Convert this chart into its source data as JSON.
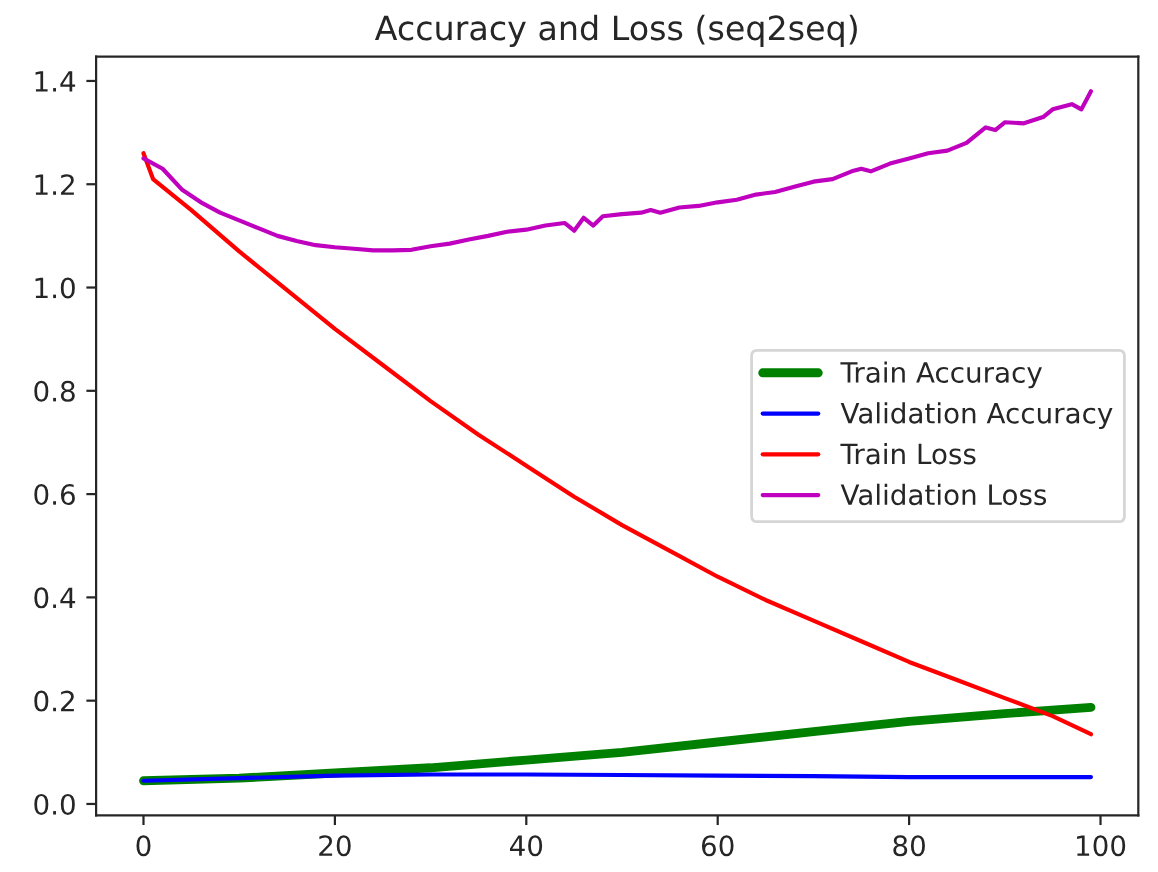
{
  "chart_data": {
    "type": "line",
    "title": "Accuracy and Loss (seq2seq)",
    "xlim": [
      -4.95,
      103.95
    ],
    "xticks": [
      0,
      20,
      40,
      60,
      80,
      100
    ],
    "ylim": [
      -0.022,
      1.447
    ],
    "yticks": [
      {
        "value": 0,
        "label": "0.0"
      },
      {
        "value": 0.2,
        "label": "0.2"
      },
      {
        "value": 0.4,
        "label": "0.4"
      },
      {
        "value": 0.6,
        "label": "0.6"
      },
      {
        "value": 0.8,
        "label": "0.8"
      },
      {
        "value": 1.0,
        "label": "1.0"
      },
      {
        "value": 1.2,
        "label": "1.2"
      },
      {
        "value": 1.4,
        "label": "1.4"
      }
    ],
    "grid": false,
    "legend": "right",
    "marker": "none",
    "line_style": "solid",
    "series": [
      {
        "name": "Train Accuracy",
        "color": "#008000",
        "x": [
          0,
          10,
          20,
          30,
          40,
          50,
          60,
          70,
          80,
          90,
          99
        ],
        "values": [
          0.045,
          0.05,
          0.06,
          0.07,
          0.085,
          0.1,
          0.12,
          0.14,
          0.16,
          0.175,
          0.187
        ]
      },
      {
        "name": "Validation Accuracy",
        "color": "#0000ff",
        "x": [
          0,
          10,
          20,
          30,
          40,
          50,
          60,
          70,
          80,
          90,
          99
        ],
        "values": [
          0.045,
          0.05,
          0.055,
          0.057,
          0.057,
          0.056,
          0.055,
          0.054,
          0.052,
          0.052,
          0.052
        ]
      },
      {
        "name": "Train Loss",
        "color": "#ff0000",
        "x": [
          0,
          1,
          5,
          10,
          15,
          20,
          25,
          30,
          35,
          40,
          45,
          50,
          55,
          60,
          65,
          70,
          75,
          80,
          85,
          90,
          95,
          99
        ],
        "values": [
          1.26,
          1.21,
          1.15,
          1.07,
          0.995,
          0.92,
          0.85,
          0.78,
          0.715,
          0.655,
          0.595,
          0.54,
          0.49,
          0.44,
          0.395,
          0.355,
          0.315,
          0.275,
          0.24,
          0.205,
          0.17,
          0.135
        ]
      },
      {
        "name": "Validation Loss",
        "color": "#bf00bf",
        "x": [
          0,
          2,
          4,
          6,
          8,
          10,
          12,
          14,
          16,
          18,
          20,
          22,
          24,
          26,
          28,
          30,
          32,
          34,
          36,
          38,
          40,
          42,
          44,
          45,
          46,
          47,
          48,
          50,
          52,
          53,
          54,
          56,
          58,
          60,
          62,
          64,
          66,
          68,
          70,
          72,
          74,
          75,
          76,
          78,
          80,
          82,
          84,
          86,
          88,
          89,
          90,
          92,
          94,
          95,
          97,
          98,
          99
        ],
        "values": [
          1.25,
          1.23,
          1.19,
          1.165,
          1.145,
          1.13,
          1.115,
          1.1,
          1.09,
          1.082,
          1.078,
          1.075,
          1.072,
          1.072,
          1.073,
          1.08,
          1.085,
          1.093,
          1.1,
          1.108,
          1.112,
          1.12,
          1.125,
          1.11,
          1.135,
          1.12,
          1.138,
          1.142,
          1.145,
          1.15,
          1.145,
          1.155,
          1.158,
          1.165,
          1.17,
          1.18,
          1.185,
          1.195,
          1.205,
          1.21,
          1.225,
          1.23,
          1.225,
          1.24,
          1.25,
          1.26,
          1.265,
          1.28,
          1.31,
          1.305,
          1.32,
          1.318,
          1.33,
          1.345,
          1.355,
          1.345,
          1.38
        ]
      }
    ]
  }
}
